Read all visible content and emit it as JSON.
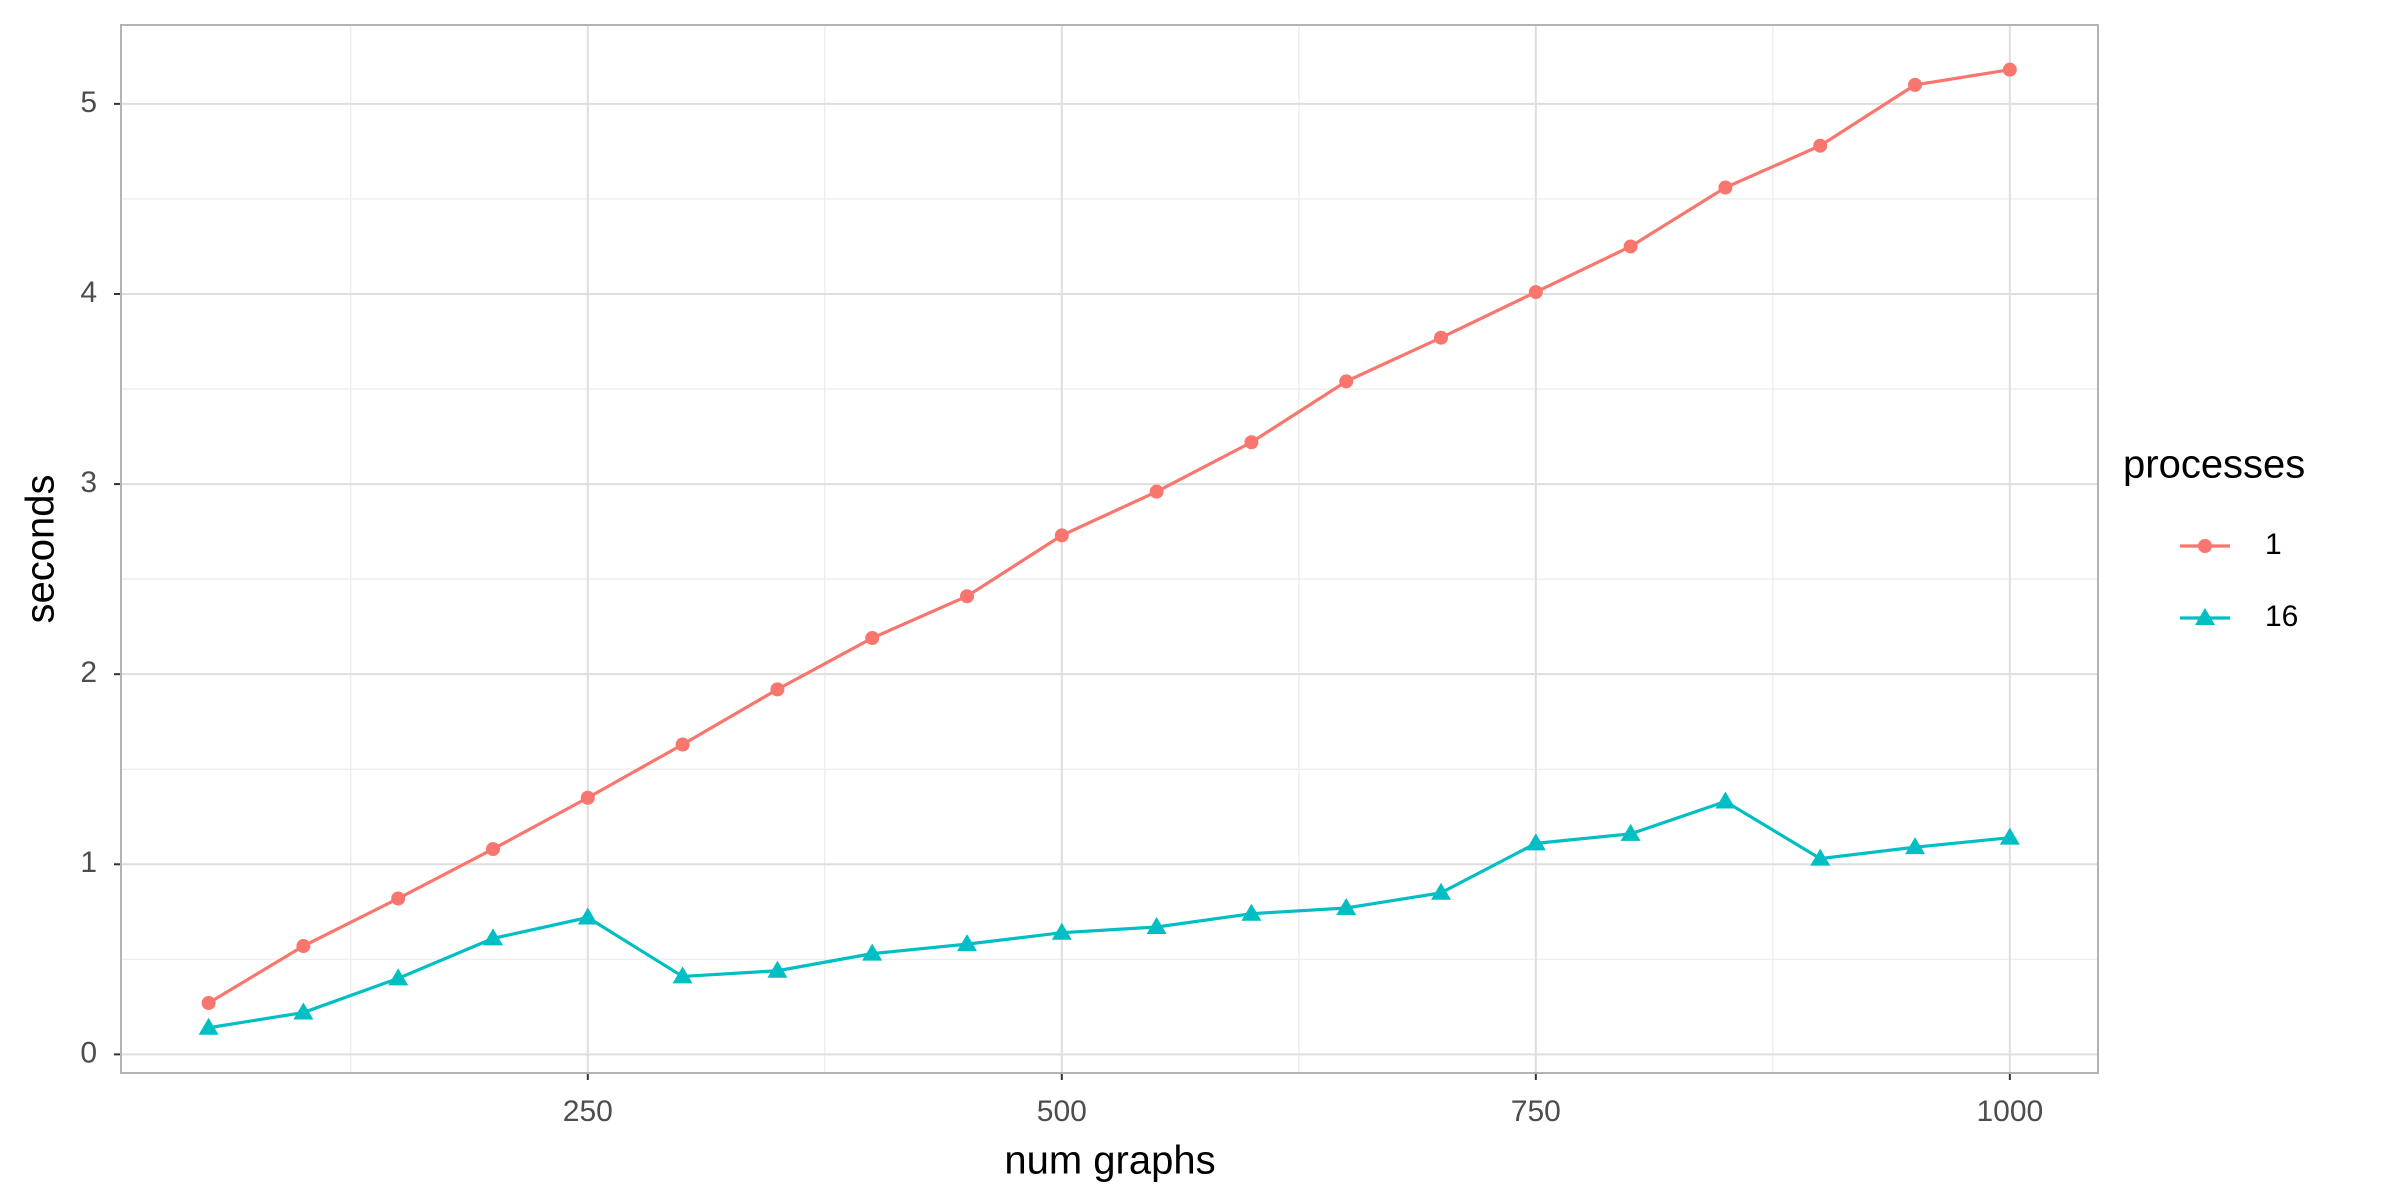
{
  "chart_data": {
    "type": "line",
    "x_label": "num graphs",
    "y_label": "seconds",
    "legend_title": "processes",
    "x": [
      50,
      100,
      150,
      200,
      250,
      300,
      350,
      400,
      450,
      500,
      550,
      600,
      650,
      700,
      750,
      800,
      850,
      900,
      950,
      1000
    ],
    "series": [
      {
        "name": "1",
        "color": "#F8766D",
        "marker": "circle",
        "values": [
          0.27,
          0.57,
          0.82,
          1.08,
          1.35,
          1.63,
          1.92,
          2.19,
          2.41,
          2.73,
          2.96,
          3.22,
          3.54,
          3.77,
          4.01,
          4.25,
          4.56,
          4.78,
          5.1,
          5.18
        ]
      },
      {
        "name": "16",
        "color": "#00BFC4",
        "marker": "triangle",
        "values": [
          0.14,
          0.22,
          0.4,
          0.61,
          0.72,
          0.41,
          0.44,
          0.53,
          0.58,
          0.64,
          0.67,
          0.74,
          0.77,
          0.85,
          1.11,
          1.16,
          1.33,
          1.03,
          1.09,
          1.14
        ]
      }
    ],
    "xlim": [
      3.8,
      1046.5
    ],
    "ylim": [
      -0.098,
      5.415
    ],
    "xticks": [
      250,
      500,
      750,
      1000
    ],
    "yticks": [
      0,
      1,
      2,
      3,
      4,
      5
    ],
    "x_minor_grid": [
      125,
      375,
      625,
      875
    ],
    "y_minor_grid": [
      0.5,
      1.5,
      2.5,
      3.5,
      4.5
    ],
    "grid": true,
    "legend": "right"
  }
}
